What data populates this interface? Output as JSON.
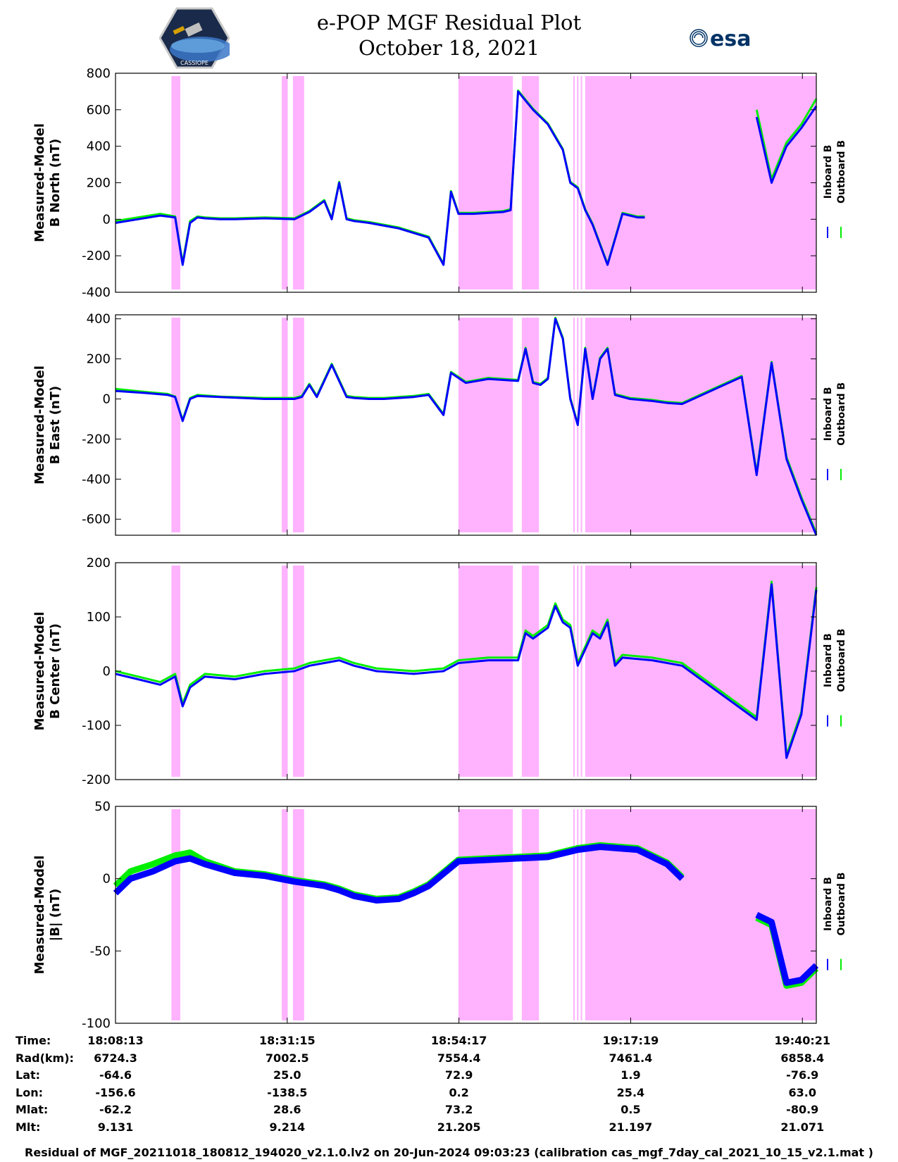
{
  "title": {
    "line1": "e-POP MGF Residual Plot",
    "line2": "October 18, 2021"
  },
  "logos": {
    "left": "cassiope-mission-logo",
    "left_text": "CASSIOPE",
    "right": "esa-logo",
    "right_text": "esa"
  },
  "colors": {
    "inboard": "#0000ff",
    "outboard": "#00ee00",
    "shade": "#ffb3ff"
  },
  "chart_data": [
    {
      "type": "line",
      "ylabel_line1": "Measured-Model",
      "ylabel_line2": "B North (nT)",
      "ylim": [
        -400,
        800
      ],
      "yticks": [
        800,
        600,
        400,
        200,
        0,
        -200,
        -400
      ],
      "legend": [
        "Inboard B",
        "Outboard B"
      ],
      "legend_placement": "right",
      "x_minutes": [
        0,
        3,
        6,
        8,
        9,
        10,
        11,
        12,
        14,
        16,
        20,
        24,
        26,
        28,
        29,
        30,
        31,
        32,
        34,
        38,
        42,
        44,
        45,
        46,
        48,
        52,
        53,
        54,
        55,
        56,
        58,
        60,
        61,
        62,
        63,
        64,
        66,
        68,
        70,
        71,
        72,
        73,
        74,
        76,
        78,
        80,
        82,
        84,
        86,
        88,
        90,
        92,
        94
      ],
      "series": [
        {
          "name": "Inboard B",
          "values": [
            -20,
            0,
            20,
            10,
            -250,
            -20,
            10,
            5,
            0,
            0,
            5,
            0,
            40,
            100,
            0,
            200,
            0,
            -10,
            -20,
            -50,
            -100,
            -250,
            150,
            30,
            30,
            40,
            50,
            700,
            650,
            600,
            520,
            380,
            200,
            170,
            50,
            -30,
            -250,
            30,
            10,
            10,
            null,
            null,
            null,
            null,
            null,
            null,
            null,
            null,
            560,
            200,
            400,
            500,
            620
          ]
        },
        {
          "name": "Outboard B",
          "values": [
            -10,
            10,
            30,
            15,
            -240,
            -10,
            15,
            10,
            5,
            5,
            10,
            5,
            45,
            105,
            5,
            205,
            5,
            -5,
            -15,
            -45,
            -95,
            -245,
            155,
            35,
            35,
            45,
            55,
            705,
            655,
            605,
            525,
            385,
            205,
            175,
            55,
            -25,
            -245,
            35,
            15,
            15,
            null,
            null,
            null,
            null,
            null,
            null,
            null,
            null,
            600,
            220,
            420,
            520,
            660
          ]
        }
      ]
    },
    {
      "type": "line",
      "ylabel_line1": "Measured-Model",
      "ylabel_line2": "B East (nT)",
      "ylim": [
        -680,
        420
      ],
      "yticks": [
        400,
        200,
        0,
        -200,
        -400,
        -600
      ],
      "legend": [
        "Inboard B",
        "Outboard B"
      ],
      "legend_placement": "right",
      "x_minutes": [
        0,
        4,
        7,
        8,
        9,
        10,
        11,
        14,
        20,
        22,
        24,
        25,
        26,
        27,
        29,
        31,
        32,
        34,
        36,
        40,
        42,
        44,
        45,
        47,
        50,
        54,
        55,
        56,
        57,
        58,
        59,
        60,
        61,
        62,
        63,
        64,
        65,
        66,
        67,
        69,
        72,
        74,
        76,
        84,
        86,
        88,
        90,
        92,
        94
      ],
      "series": [
        {
          "name": "Inboard B",
          "values": [
            40,
            30,
            20,
            10,
            -110,
            0,
            15,
            10,
            0,
            0,
            0,
            10,
            70,
            10,
            170,
            10,
            5,
            0,
            0,
            10,
            20,
            -80,
            130,
            80,
            100,
            90,
            250,
            80,
            70,
            100,
            400,
            300,
            0,
            -130,
            250,
            0,
            200,
            250,
            20,
            0,
            -10,
            -20,
            -25,
            110,
            -380,
            180,
            -300,
            -500,
            -680
          ]
        },
        {
          "name": "Outboard B",
          "values": [
            50,
            35,
            25,
            12,
            -105,
            5,
            20,
            12,
            5,
            5,
            5,
            15,
            75,
            15,
            175,
            15,
            10,
            5,
            5,
            15,
            25,
            -75,
            135,
            85,
            105,
            95,
            255,
            85,
            75,
            105,
            405,
            305,
            5,
            -125,
            255,
            5,
            205,
            255,
            25,
            5,
            -5,
            -15,
            -20,
            115,
            -370,
            185,
            -290,
            -490,
            -670
          ]
        }
      ]
    },
    {
      "type": "line",
      "ylabel_line1": "Measured-Model",
      "ylabel_line2": "B Center (nT)",
      "ylim": [
        -200,
        200
      ],
      "yticks": [
        200,
        100,
        0,
        -100,
        -200
      ],
      "legend": [
        "Inboard B",
        "Outboard B"
      ],
      "legend_placement": "right",
      "x_minutes": [
        0,
        3,
        6,
        8,
        9,
        10,
        12,
        16,
        20,
        24,
        26,
        28,
        30,
        32,
        35,
        40,
        44,
        46,
        50,
        54,
        55,
        56,
        58,
        59,
        60,
        61,
        62,
        64,
        65,
        66,
        67,
        68,
        72,
        76,
        86,
        88,
        90,
        92,
        94
      ],
      "series": [
        {
          "name": "Inboard B",
          "values": [
            -5,
            -15,
            -25,
            -10,
            -65,
            -30,
            -10,
            -15,
            -5,
            0,
            10,
            15,
            20,
            10,
            0,
            -5,
            0,
            15,
            20,
            20,
            70,
            60,
            80,
            120,
            90,
            80,
            10,
            70,
            60,
            90,
            10,
            25,
            20,
            10,
            -90,
            160,
            -160,
            -80,
            150
          ]
        },
        {
          "name": "Outboard B",
          "values": [
            0,
            -10,
            -20,
            -5,
            -60,
            -25,
            -5,
            -10,
            0,
            5,
            15,
            20,
            25,
            15,
            5,
            0,
            5,
            20,
            25,
            25,
            75,
            65,
            85,
            125,
            95,
            85,
            15,
            75,
            65,
            95,
            15,
            30,
            25,
            15,
            -85,
            165,
            -155,
            -75,
            155
          ]
        }
      ]
    },
    {
      "type": "line",
      "ylabel_line1": "Measured-Model",
      "ylabel_line2": "|B| (nT)",
      "ylim": [
        -100,
        50
      ],
      "yticks": [
        50,
        0,
        -50,
        -100
      ],
      "legend": [
        "Inboard B",
        "Outboard B"
      ],
      "legend_placement": "right",
      "x_minutes": [
        0,
        2,
        5,
        8,
        10,
        12,
        16,
        20,
        24,
        28,
        30,
        32,
        35,
        38,
        40,
        42,
        46,
        50,
        54,
        58,
        62,
        65,
        70,
        74,
        76,
        78,
        79,
        80,
        82,
        84,
        86,
        88,
        90,
        92,
        94
      ],
      "series": [
        {
          "name": "Inboard B",
          "values": [
            -10,
            0,
            5,
            12,
            14,
            10,
            4,
            2,
            -2,
            -5,
            -8,
            -12,
            -15,
            -14,
            -10,
            -5,
            12,
            13,
            14,
            15,
            20,
            22,
            20,
            10,
            0,
            null,
            null,
            null,
            null,
            null,
            -25,
            -30,
            -72,
            -70,
            -60
          ]
        },
        {
          "name": "Outboard B",
          "values": [
            -5,
            5,
            10,
            16,
            18,
            12,
            5,
            3,
            -1,
            -4,
            -7,
            -11,
            -14,
            -13,
            -9,
            -4,
            13,
            14,
            15,
            16,
            21,
            23,
            21,
            11,
            1,
            null,
            null,
            null,
            null,
            null,
            -27,
            -32,
            -74,
            -72,
            -62
          ]
        }
      ]
    }
  ],
  "x_axis": {
    "tick_minutes": [
      0,
      23.033,
      46.067,
      69.1,
      92.133
    ],
    "range_minutes": [
      0,
      94
    ]
  },
  "shaded_intervals_minutes": [
    [
      7.5,
      8.7
    ],
    [
      22.3,
      23.1
    ],
    [
      23.8,
      25.3
    ],
    [
      46.0,
      53.3
    ],
    [
      54.5,
      56.8
    ],
    [
      61.4,
      61.6
    ],
    [
      61.9,
      62.1
    ],
    [
      62.4,
      62.6
    ],
    [
      63.0,
      94
    ]
  ],
  "footer": {
    "labels": [
      "Time:",
      "Rad(km):",
      "Lat:",
      "Lon:",
      "Mlat:",
      "Mlt:"
    ],
    "columns": [
      [
        "18:08:13",
        "6724.3",
        "-64.6",
        "-156.6",
        "-62.2",
        "9.131"
      ],
      [
        "18:31:15",
        "7002.5",
        "25.0",
        "-138.5",
        "28.6",
        "9.214"
      ],
      [
        "18:54:17",
        "7554.4",
        "72.9",
        "0.2",
        "73.2",
        "21.205"
      ],
      [
        "19:17:19",
        "7461.4",
        "1.9",
        "25.4",
        "0.5",
        "21.197"
      ],
      [
        "19:40:21",
        "6858.4",
        "-76.9",
        "63.0",
        "-80.9",
        "21.071"
      ]
    ],
    "note": "Residual of MGF_20211018_180812_194020_v2.1.0.lv2 on 20-Jun-2024 09:03:23 (calibration cas_mgf_7day_cal_2021_10_15_v2.1.mat )"
  }
}
